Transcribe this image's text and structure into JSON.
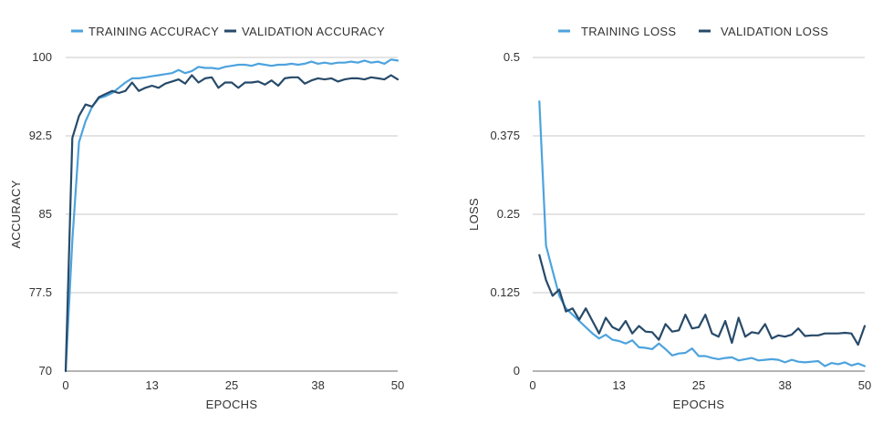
{
  "colors": {
    "training": "#4da3de",
    "validation": "#274a69",
    "grid": "#c8c8c8",
    "axis": "#888888",
    "text": "#333333"
  },
  "chart_data": [
    {
      "type": "line",
      "title": "",
      "xlabel": "EPOCHS",
      "ylabel": "ACCURACY",
      "xlim": [
        0,
        50
      ],
      "ylim": [
        70,
        100
      ],
      "x_ticks": [
        "0",
        "13",
        "25",
        "38",
        "50"
      ],
      "y_ticks": [
        "100",
        "92.5",
        "85",
        "77.5",
        "70"
      ],
      "legend": "top",
      "grid": "horizontal",
      "series": [
        {
          "name": "TRAINING ACCURACY",
          "color": "#4da3de",
          "x": [
            0,
            1,
            2,
            3,
            4,
            5,
            6,
            7,
            8,
            9,
            10,
            11,
            12,
            13,
            14,
            15,
            16,
            17,
            18,
            19,
            20,
            21,
            22,
            23,
            24,
            25,
            26,
            27,
            28,
            29,
            30,
            31,
            32,
            33,
            34,
            35,
            36,
            37,
            38,
            39,
            40,
            41,
            42,
            43,
            44,
            45,
            46,
            47,
            48,
            49,
            50
          ],
          "values": [
            70,
            82.5,
            91.9,
            93.9,
            95.3,
            96.1,
            96.3,
            96.6,
            97.1,
            97.6,
            98.0,
            98.0,
            98.1,
            98.2,
            98.3,
            98.4,
            98.5,
            98.8,
            98.5,
            98.7,
            99.1,
            99.0,
            99.0,
            98.9,
            99.1,
            99.2,
            99.3,
            99.3,
            99.2,
            99.4,
            99.3,
            99.2,
            99.3,
            99.3,
            99.4,
            99.3,
            99.4,
            99.6,
            99.4,
            99.5,
            99.4,
            99.5,
            99.5,
            99.6,
            99.5,
            99.7,
            99.5,
            99.6,
            99.4,
            99.8,
            99.7
          ]
        },
        {
          "name": "VALIDATION ACCURACY",
          "color": "#274a69",
          "x": [
            0,
            1,
            2,
            3,
            4,
            5,
            6,
            7,
            8,
            9,
            10,
            11,
            12,
            13,
            14,
            15,
            16,
            17,
            18,
            19,
            20,
            21,
            22,
            23,
            24,
            25,
            26,
            27,
            28,
            29,
            30,
            31,
            32,
            33,
            34,
            35,
            36,
            37,
            38,
            39,
            40,
            41,
            42,
            43,
            44,
            45,
            46,
            47,
            48,
            49,
            50
          ],
          "values": [
            70,
            92.3,
            94.4,
            95.5,
            95.3,
            96.2,
            96.5,
            96.8,
            96.6,
            96.8,
            97.6,
            96.8,
            97.1,
            97.3,
            97.1,
            97.5,
            97.7,
            97.9,
            97.5,
            98.3,
            97.6,
            98.0,
            98.1,
            97.1,
            97.6,
            97.6,
            97.1,
            97.6,
            97.6,
            97.7,
            97.4,
            97.8,
            97.3,
            98.0,
            98.1,
            98.1,
            97.5,
            97.8,
            98.0,
            97.9,
            98.0,
            97.7,
            97.9,
            98.0,
            98.0,
            97.9,
            98.1,
            98.0,
            97.9,
            98.3,
            97.9
          ]
        }
      ]
    },
    {
      "type": "line",
      "title": "",
      "xlabel": "EPOCHS",
      "ylabel": "LOSS",
      "xlim": [
        0,
        50
      ],
      "ylim": [
        0,
        0.5
      ],
      "x_ticks": [
        "0",
        "13",
        "25",
        "38",
        "50"
      ],
      "y_ticks": [
        "0.5",
        "0.375",
        "0.25",
        "0.125",
        "0"
      ],
      "legend": "top",
      "grid": "horizontal",
      "series": [
        {
          "name": "TRAINING LOSS",
          "color": "#4da3de",
          "x": [
            1,
            2,
            3,
            4,
            5,
            6,
            7,
            8,
            9,
            10,
            11,
            12,
            13,
            14,
            15,
            16,
            17,
            18,
            19,
            20,
            21,
            22,
            23,
            24,
            25,
            26,
            27,
            28,
            29,
            30,
            31,
            32,
            33,
            34,
            35,
            36,
            37,
            38,
            39,
            40,
            41,
            42,
            43,
            44,
            45,
            46,
            47,
            48,
            49,
            50
          ],
          "values": [
            0.43,
            0.2,
            0.16,
            0.12,
            0.1,
            0.09,
            0.08,
            0.07,
            0.06,
            0.052,
            0.058,
            0.05,
            0.048,
            0.044,
            0.049,
            0.038,
            0.037,
            0.035,
            0.044,
            0.035,
            0.025,
            0.028,
            0.029,
            0.036,
            0.024,
            0.024,
            0.021,
            0.019,
            0.021,
            0.022,
            0.017,
            0.019,
            0.021,
            0.017,
            0.018,
            0.019,
            0.018,
            0.014,
            0.018,
            0.015,
            0.014,
            0.015,
            0.016,
            0.008,
            0.013,
            0.011,
            0.014,
            0.009,
            0.012,
            0.008
          ]
        },
        {
          "name": "VALIDATION LOSS",
          "color": "#274a69",
          "x": [
            1,
            2,
            3,
            4,
            5,
            6,
            7,
            8,
            9,
            10,
            11,
            12,
            13,
            14,
            15,
            16,
            17,
            18,
            19,
            20,
            21,
            22,
            23,
            24,
            25,
            26,
            27,
            28,
            29,
            30,
            31,
            32,
            33,
            34,
            35,
            36,
            37,
            38,
            39,
            40,
            41,
            42,
            43,
            44,
            45,
            46,
            47,
            48,
            49,
            50
          ],
          "values": [
            0.185,
            0.145,
            0.12,
            0.13,
            0.095,
            0.1,
            0.082,
            0.1,
            0.08,
            0.06,
            0.085,
            0.07,
            0.065,
            0.08,
            0.06,
            0.072,
            0.063,
            0.062,
            0.05,
            0.075,
            0.063,
            0.065,
            0.09,
            0.068,
            0.07,
            0.09,
            0.06,
            0.055,
            0.08,
            0.045,
            0.085,
            0.055,
            0.062,
            0.06,
            0.075,
            0.052,
            0.057,
            0.055,
            0.058,
            0.068,
            0.056,
            0.057,
            0.057,
            0.06,
            0.06,
            0.06,
            0.061,
            0.06,
            0.042,
            0.072
          ]
        }
      ]
    }
  ]
}
